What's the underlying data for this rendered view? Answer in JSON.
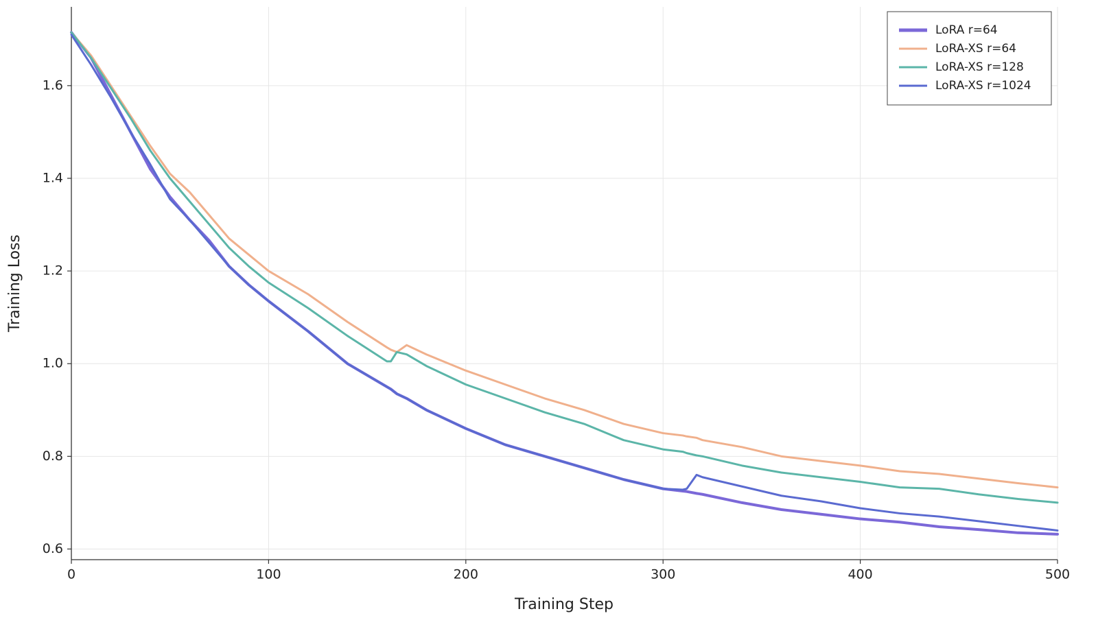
{
  "chart_data": {
    "type": "line",
    "x_label": "Training Step",
    "y_label": "Training Loss",
    "x": [
      0,
      10,
      20,
      30,
      40,
      50,
      60,
      70,
      80,
      90,
      100,
      120,
      140,
      160,
      162,
      165,
      170,
      180,
      200,
      220,
      240,
      260,
      280,
      300,
      310,
      312,
      317,
      320,
      340,
      360,
      380,
      400,
      420,
      440,
      460,
      480,
      500
    ],
    "series": [
      {
        "name": "LoRA r=64",
        "color": "#7b68d8",
        "values": [
          1.715,
          1.66,
          1.58,
          1.5,
          1.42,
          1.36,
          1.31,
          1.265,
          1.21,
          1.17,
          1.135,
          1.07,
          1.0,
          0.95,
          0.945,
          0.935,
          0.925,
          0.9,
          0.86,
          0.825,
          0.8,
          0.775,
          0.75,
          0.73,
          0.725,
          0.724,
          0.72,
          0.718,
          0.7,
          0.685,
          0.675,
          0.665,
          0.658,
          0.648,
          0.642,
          0.635,
          0.632
        ]
      },
      {
        "name": "LoRA-XS r=64",
        "color": "#f0b08c",
        "values": [
          1.715,
          1.665,
          1.6,
          1.535,
          1.47,
          1.41,
          1.37,
          1.32,
          1.27,
          1.235,
          1.2,
          1.15,
          1.09,
          1.035,
          1.03,
          1.025,
          1.04,
          1.02,
          0.985,
          0.955,
          0.925,
          0.9,
          0.87,
          0.85,
          0.845,
          0.843,
          0.84,
          0.835,
          0.82,
          0.8,
          0.79,
          0.78,
          0.768,
          0.762,
          0.752,
          0.742,
          0.733
        ]
      },
      {
        "name": "LoRA-XS r=128",
        "color": "#5bb5a8",
        "values": [
          1.715,
          1.66,
          1.595,
          1.53,
          1.46,
          1.4,
          1.35,
          1.3,
          1.25,
          1.21,
          1.175,
          1.12,
          1.06,
          1.005,
          1.005,
          1.025,
          1.02,
          0.995,
          0.955,
          0.925,
          0.895,
          0.87,
          0.835,
          0.815,
          0.81,
          0.807,
          0.802,
          0.8,
          0.78,
          0.765,
          0.755,
          0.745,
          0.733,
          0.73,
          0.718,
          0.708,
          0.7
        ]
      },
      {
        "name": "LoRA-XS r=1024",
        "color": "#5a6ad0",
        "values": [
          1.71,
          1.645,
          1.575,
          1.5,
          1.43,
          1.355,
          1.31,
          1.26,
          1.21,
          1.17,
          1.135,
          1.07,
          1.0,
          0.95,
          0.945,
          0.935,
          0.925,
          0.9,
          0.86,
          0.825,
          0.8,
          0.775,
          0.75,
          0.73,
          0.728,
          0.73,
          0.76,
          0.755,
          0.735,
          0.715,
          0.703,
          0.688,
          0.677,
          0.67,
          0.66,
          0.65,
          0.64
        ]
      }
    ],
    "xlim": [
      0,
      500
    ],
    "xticks": [
      0,
      100,
      200,
      300,
      400,
      500
    ],
    "ylim": [
      0.577,
      1.77
    ],
    "yticks": [
      0.6,
      0.8,
      {
        "value": 1,
        "label": "1.0"
      },
      1.2,
      1.4,
      1.6
    ],
    "grid": true,
    "legend": "upper-right"
  }
}
